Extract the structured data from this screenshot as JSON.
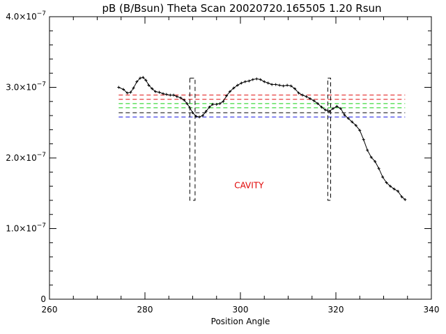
{
  "chart_data": {
    "type": "line",
    "title": "pB (B/Bsun) Theta Scan 20020720.165505 1.20 Rsun",
    "xlabel": "Position Angle",
    "ylabel": "",
    "xlim": [
      260,
      340
    ],
    "ylim": [
      0,
      4e-07
    ],
    "x_ticks": [
      260,
      280,
      300,
      320,
      340
    ],
    "x_tick_labels": [
      "260",
      "280",
      "300",
      "320",
      "340"
    ],
    "x_minor_step": 5,
    "y_ticks": [
      {
        "value": 0,
        "label": "0"
      },
      {
        "value": 1e-07,
        "mantissa": "1.0×10",
        "exponent": "−7"
      },
      {
        "value": 2e-07,
        "mantissa": "2.0×10",
        "exponent": "−7"
      },
      {
        "value": 3e-07,
        "mantissa": "3.0×10",
        "exponent": "−7"
      },
      {
        "value": 4e-07,
        "mantissa": "4.0×10",
        "exponent": "−7"
      }
    ],
    "y_minor_step": 2e-08,
    "grid": false,
    "series": [
      {
        "type": "line-with-markers",
        "color": "#000000",
        "x": [
          274.5,
          275.5,
          276.3,
          277.0,
          277.6,
          278.3,
          279.0,
          279.6,
          280.2,
          280.8,
          281.5,
          282.2,
          283.0,
          283.8,
          284.5,
          285.3,
          286.0,
          286.7,
          287.5,
          288.2,
          288.8,
          289.4,
          290.0,
          290.7,
          291.4,
          292.1,
          292.8,
          293.5,
          294.2,
          295.0,
          295.7,
          296.4,
          297.1,
          297.8,
          298.6,
          299.4,
          300.2,
          301.0,
          301.8,
          302.6,
          303.4,
          304.2,
          305.0,
          305.8,
          306.6,
          307.4,
          308.2,
          309.0,
          309.8,
          310.6,
          311.4,
          312.2,
          313.0,
          313.8,
          314.6,
          315.4,
          316.2,
          317.0,
          317.8,
          318.6,
          319.4,
          320.2,
          321.0,
          321.8,
          322.6,
          323.4,
          324.2,
          325.0,
          325.8,
          326.6,
          327.4,
          328.2,
          329.0,
          329.8,
          330.6,
          331.4,
          332.2,
          333.0,
          333.8,
          334.5
        ],
        "y": [
          3e-07,
          2.97e-07,
          2.92e-07,
          2.93e-07,
          2.99e-07,
          3.08e-07,
          3.13e-07,
          3.14e-07,
          3.1e-07,
          3.03e-07,
          2.98e-07,
          2.94e-07,
          2.93e-07,
          2.91e-07,
          2.9e-07,
          2.89e-07,
          2.89e-07,
          2.87e-07,
          2.85e-07,
          2.82e-07,
          2.77e-07,
          2.71e-07,
          2.64e-07,
          2.59e-07,
          2.58e-07,
          2.6e-07,
          2.66e-07,
          2.72e-07,
          2.76e-07,
          2.76e-07,
          2.77e-07,
          2.8e-07,
          2.88e-07,
          2.94e-07,
          2.99e-07,
          3.03e-07,
          3.06e-07,
          3.08e-07,
          3.09e-07,
          3.11e-07,
          3.12e-07,
          3.11e-07,
          3.08e-07,
          3.06e-07,
          3.04e-07,
          3.04e-07,
          3.03e-07,
          3.02e-07,
          3.03e-07,
          3.02e-07,
          2.98e-07,
          2.92e-07,
          2.89e-07,
          2.87e-07,
          2.84e-07,
          2.81e-07,
          2.77e-07,
          2.72e-07,
          2.68e-07,
          2.66e-07,
          2.7e-07,
          2.73e-07,
          2.7e-07,
          2.61e-07,
          2.56e-07,
          2.51e-07,
          2.46e-07,
          2.39e-07,
          2.26e-07,
          2.11e-07,
          2.01e-07,
          1.95e-07,
          1.85e-07,
          1.73e-07,
          1.65e-07,
          1.6e-07,
          1.56e-07,
          1.53e-07,
          1.45e-07,
          1.41e-07
        ]
      }
    ],
    "reference_lines": [
      {
        "y": 2.89e-07,
        "color": "#e01010",
        "style": "dashed",
        "x_range": [
          274.5,
          334.5
        ]
      },
      {
        "y": 2.83e-07,
        "color": "#e01010",
        "style": "dashed",
        "x_range": [
          274.5,
          334.5
        ]
      },
      {
        "y": 2.77e-07,
        "color": "#10d010",
        "style": "dashed",
        "x_range": [
          274.5,
          334.5
        ]
      },
      {
        "y": 2.71e-07,
        "color": "#10d010",
        "style": "dashed",
        "x_range": [
          274.5,
          334.5
        ]
      },
      {
        "y": 2.64e-07,
        "color": "#000000",
        "style": "dashed",
        "x_range": [
          274.5,
          334.5
        ]
      },
      {
        "y": 2.58e-07,
        "color": "#1010e0",
        "style": "dashed",
        "x_range": [
          274.5,
          334.5
        ]
      }
    ],
    "boxes": [
      {
        "x_range": [
          289.4,
          290.5
        ],
        "y_range": [
          1.4e-07,
          3.13e-07
        ],
        "style": "dashed",
        "color": "#000000"
      },
      {
        "x_range": [
          318.3,
          318.9
        ],
        "y_range": [
          1.4e-07,
          3.13e-07
        ],
        "style": "dashed",
        "color": "#000000"
      }
    ],
    "annotations": [
      {
        "text": "CAVITY",
        "x": 301.8,
        "y": 1.57e-07,
        "color": "#e00000"
      }
    ]
  }
}
